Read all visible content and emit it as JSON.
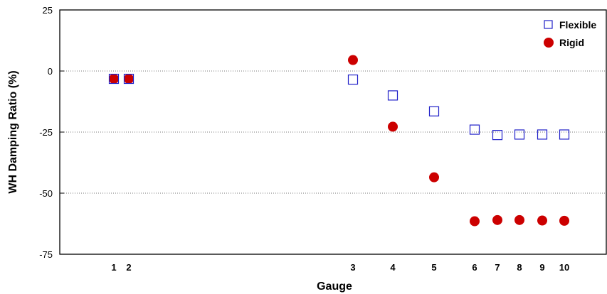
{
  "chart_data": {
    "type": "scatter",
    "xlabel": "Gauge",
    "ylabel": "WH Damping Ratio (%)",
    "ylim": [
      -75,
      25
    ],
    "yticks": [
      25,
      0,
      -25,
      -50,
      -75
    ],
    "grid": "horizontal dotted at y = 0, -25, -50",
    "legend": "top-right",
    "x_ticks": [
      "1",
      "2",
      "3",
      "4",
      "5",
      "6",
      "7",
      "8",
      "9",
      "10"
    ],
    "series": [
      {
        "name": "Flexible",
        "marker": "open-square",
        "color": "#2020c8",
        "x": [
          "1",
          "2",
          "3",
          "4",
          "5",
          "6",
          "7",
          "8",
          "9",
          "10"
        ],
        "values": [
          -3.2,
          -3.2,
          -3.5,
          -10,
          -16.5,
          -24,
          -26.2,
          -26,
          -26,
          -26
        ]
      },
      {
        "name": "Rigid",
        "marker": "filled-circle",
        "color": "#cc0000",
        "x": [
          "1",
          "2",
          "3",
          "4",
          "5",
          "6",
          "7",
          "8",
          "9",
          "10"
        ],
        "values": [
          -3.2,
          -3.2,
          4.5,
          -22.8,
          -43.5,
          -61.5,
          -61,
          -61,
          -61.2,
          -61.3
        ]
      }
    ]
  }
}
